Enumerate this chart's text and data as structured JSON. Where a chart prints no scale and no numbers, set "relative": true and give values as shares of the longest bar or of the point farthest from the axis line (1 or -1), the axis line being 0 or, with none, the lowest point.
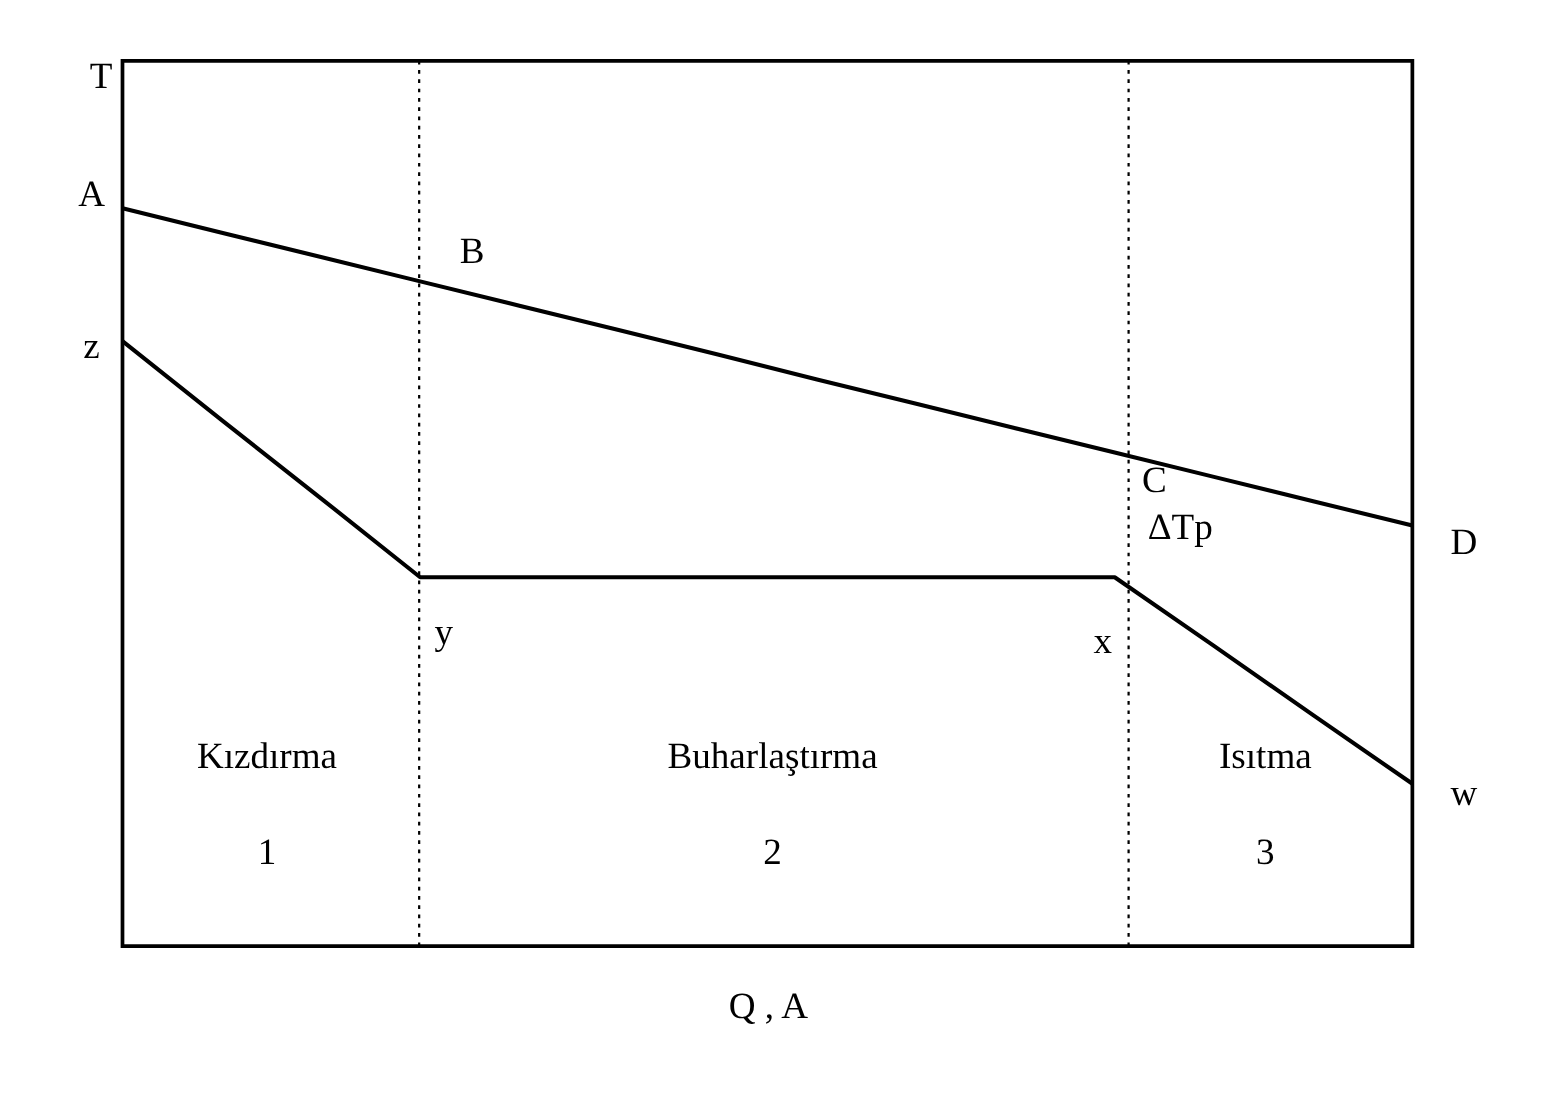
{
  "chart_data": {
    "type": "line",
    "relative": true,
    "xlabel": "Q , A",
    "ylabel": "T",
    "marker": "none",
    "line_style": "solid",
    "categories": [
      null,
      null,
      null,
      null,
      null,
      null,
      null,
      null,
      null,
      null,
      null,
      null,
      null,
      null
    ],
    "series": [
      {
        "color": "#000000",
        "values": [
          1.0,
          0.967,
          0.934,
          0.901,
          0.868,
          0.835,
          0.802,
          0.768,
          0.735,
          0.702,
          0.669,
          0.636,
          0.603,
          0.57
        ]
      },
      {
        "color": "#000000",
        "values": [
          0.82,
          0.713,
          0.607,
          0.5,
          0.5,
          0.5,
          0.5,
          0.5,
          0.5,
          0.5,
          0.5,
          0.407,
          0.313,
          0.22
        ]
      }
    ],
    "annotations": [
      "A",
      "B",
      "C",
      "D",
      "z",
      "y",
      "x",
      "w",
      "ΔTp",
      "Kızdırma",
      "1",
      "Buharlaştırma",
      "2",
      "Isıtma",
      "3"
    ]
  }
}
